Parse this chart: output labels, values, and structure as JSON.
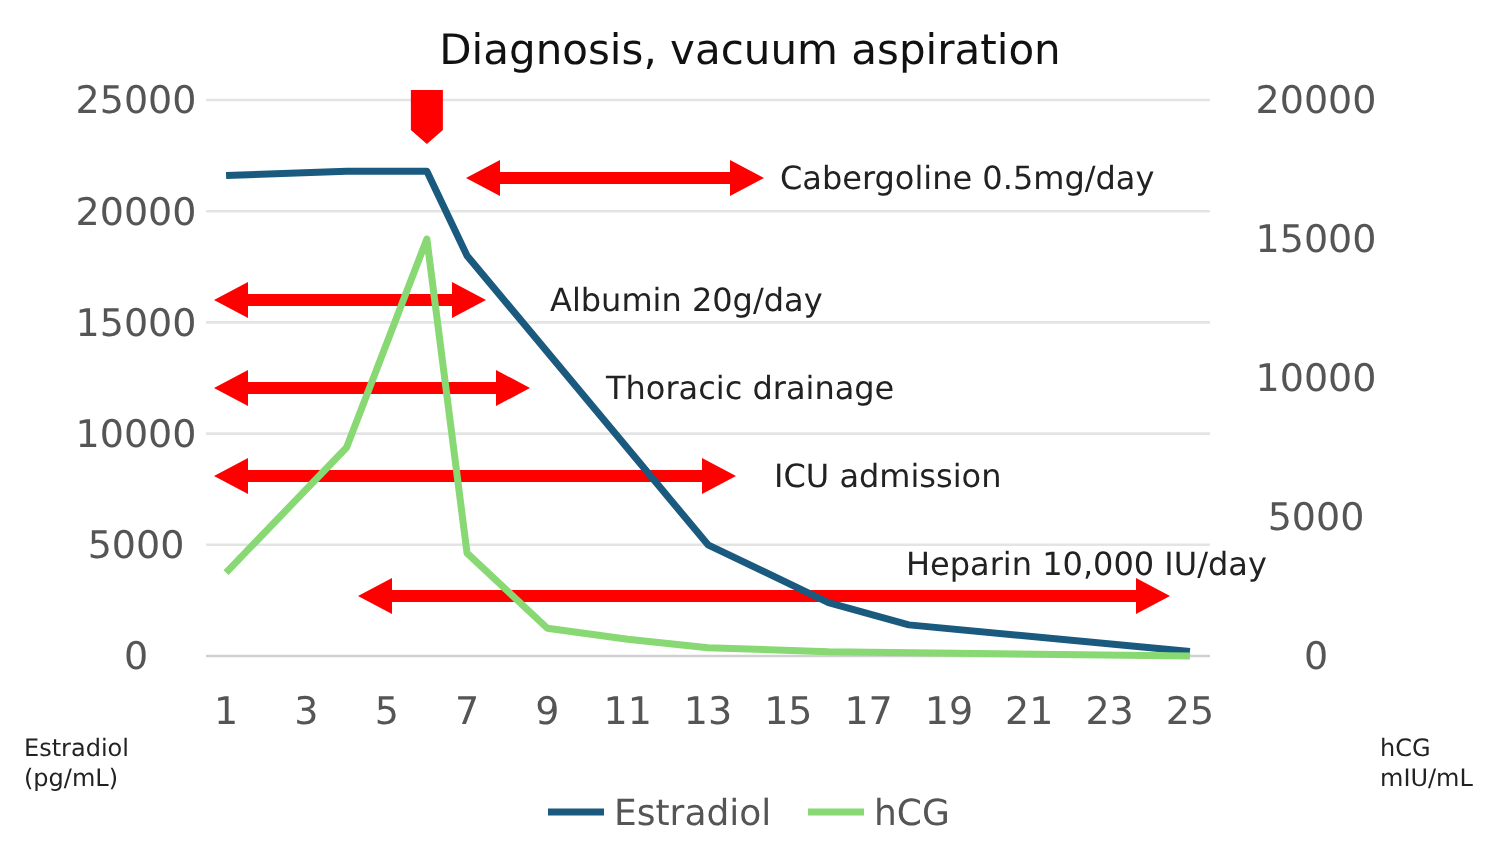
{
  "chart_data": {
    "type": "line",
    "title": "Diagnosis, vacuum aspiration",
    "ylabel": "Estradiol\n(pg/mL)",
    "y2label": "hCG\nmIU/mL",
    "xlim": [
      0.5,
      25.5
    ],
    "xticks": [
      1,
      3,
      5,
      7,
      9,
      11,
      13,
      15,
      17,
      19,
      21,
      23,
      25
    ],
    "ylim": [
      0,
      25000
    ],
    "yticks": [
      0,
      5000,
      10000,
      15000,
      20000,
      25000
    ],
    "y2lim": [
      0,
      20000
    ],
    "y2ticks": [
      0,
      5000,
      10000,
      15000,
      20000
    ],
    "grid": "y",
    "legend": "bottom",
    "marker": "none",
    "line_style": "solid",
    "series": [
      {
        "name": "Estradiol",
        "color": "#1a5a7e",
        "x": [
          1,
          4,
          6,
          7,
          13,
          16,
          18,
          25
        ],
        "values": [
          21600,
          21800,
          21800,
          18000,
          5000,
          2400,
          1400,
          200
        ]
      },
      {
        "name": "hCG",
        "color": "#88d873",
        "axis": "y2",
        "x": [
          1,
          4,
          6,
          7,
          9,
          11,
          13,
          16,
          25
        ],
        "values": [
          3000,
          7500,
          15000,
          3700,
          1000,
          600,
          300,
          150,
          0
        ]
      }
    ],
    "annotations": [
      "Cabergoline 0.5mg/day",
      "Albumin 20g/day",
      "Thoracic drainage",
      "ICU admission",
      "Heparin 10,000 IU/day"
    ]
  }
}
